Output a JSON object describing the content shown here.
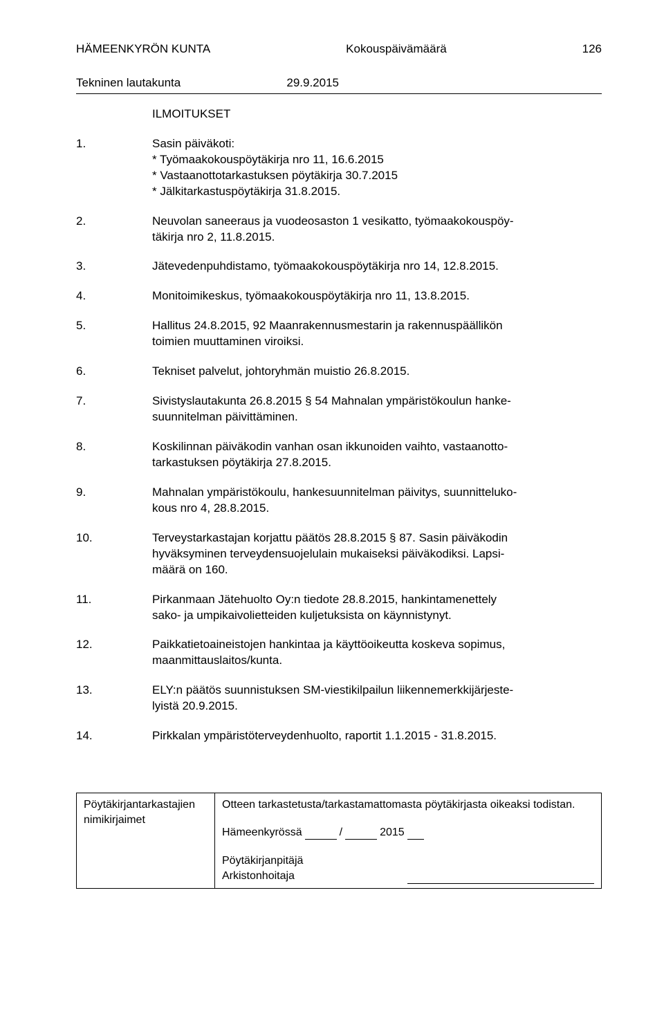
{
  "header": {
    "org": "HÄMEENKYRÖN KUNTA",
    "datelabel": "Kokouspäivämäärä",
    "pagenum": "126"
  },
  "subheader": {
    "committee": "Tekninen lautakunta",
    "date": "29.9.2015"
  },
  "section_title": "ILMOITUKSET",
  "items": [
    {
      "num": "1.",
      "lines": [
        "Sasin päiväkoti:",
        "* Työmaakokouspöytäkirja nro 11, 16.6.2015",
        "* Vastaanottotarkastuksen pöytäkirja 30.7.2015",
        "* Jälkitarkastuspöytäkirja 31.8.2015."
      ]
    },
    {
      "num": "2.",
      "lines": [
        "Neuvolan saneeraus ja vuodeosaston 1 vesikatto, työmaakokouspöy-",
        "täkirja nro 2, 11.8.2015."
      ]
    },
    {
      "num": "3.",
      "lines": [
        "Jätevedenpuhdistamo, työmaakokouspöytäkirja nro 14, 12.8.2015."
      ]
    },
    {
      "num": "4.",
      "lines": [
        "Monitoimikeskus, työmaakokouspöytäkirja nro 11, 13.8.2015."
      ]
    },
    {
      "num": "5.",
      "lines": [
        "Hallitus 24.8.2015, 92 Maanrakennusmestarin ja rakennuspäällikön",
        "toimien muuttaminen viroiksi."
      ]
    },
    {
      "num": "6.",
      "lines": [
        "Tekniset palvelut, johtoryhmän muistio 26.8.2015."
      ]
    },
    {
      "num": "7.",
      "lines": [
        "Sivistyslautakunta 26.8.2015 § 54 Mahnalan ympäristökoulun hanke-",
        "suunnitelman päivittäminen."
      ]
    },
    {
      "num": "8.",
      "lines": [
        "Koskilinnan päiväkodin vanhan osan ikkunoiden vaihto, vastaanotto-",
        "tarkastuksen pöytäkirja 27.8.2015."
      ]
    },
    {
      "num": "9.",
      "lines": [
        "Mahnalan ympäristökoulu, hankesuunnitelman päivitys, suunnitteluko-",
        "kous nro 4, 28.8.2015."
      ]
    },
    {
      "num": "10.",
      "lines": [
        "Terveystarkastajan korjattu päätös 28.8.2015 § 87. Sasin päiväkodin",
        "hyväksyminen terveydensuojelulain mukaiseksi päiväkodiksi. Lapsi-",
        "määrä on 160."
      ]
    },
    {
      "num": "11.",
      "lines": [
        "Pirkanmaan Jätehuolto Oy:n tiedote 28.8.2015, hankintamenettely",
        "sako- ja umpikaivolietteiden kuljetuksista on käynnistynyt."
      ]
    },
    {
      "num": "12.",
      "lines": [
        "Paikkatietoaineistojen hankintaa ja käyttöoikeutta koskeva sopimus,",
        "maanmittauslaitos/kunta."
      ]
    },
    {
      "num": "13.",
      "lines": [
        "ELY:n päätös suunnistuksen SM-viestikilpailun liikennemerkkijärjeste-",
        "lyistä 20.9.2015."
      ]
    },
    {
      "num": "14.",
      "lines": [
        "Pirkkalan ympäristöterveydenhuolto, raportit 1.1.2015 - 31.8.2015."
      ]
    }
  ],
  "footer": {
    "left_line1": "Pöytäkirjantarkastajien",
    "left_line2": "nimikirjaimet",
    "right_line1": "Otteen tarkastetusta/tarkastamattomasta pöytäkirjasta oikeaksi todistan.",
    "place": "Hämeenkyrössä",
    "slash": "/",
    "year": "2015",
    "sig1": "Pöytäkirjanpitäjä",
    "sig2": "Arkistonhoitaja"
  }
}
